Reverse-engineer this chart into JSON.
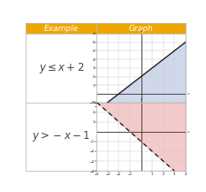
{
  "title_text": "Example",
  "title_text2": "Graph",
  "header_bg": "#F0A500",
  "header_text_color": "#FFFFFF",
  "table_border_color": "#BBBBBB",
  "bg_color": "#FFFFFF",
  "row1_formula": "y \\leq x + 2",
  "row2_formula": "y > -x - 1",
  "graph1": {
    "xlim": [
      -4,
      4
    ],
    "ylim": [
      -1,
      7
    ],
    "shade_color": "#AABBDD",
    "shade_alpha": 0.55,
    "line_solid": true,
    "slope": 1,
    "intercept": 2,
    "shade_below": true
  },
  "graph2": {
    "xlim": [
      -4,
      4
    ],
    "ylim": [
      -4,
      3
    ],
    "shade_color": "#EEA0A0",
    "shade_alpha": 0.55,
    "line_solid": false,
    "slope": -1,
    "intercept": -1,
    "shade_below": false
  },
  "axis_color": "#444444",
  "grid_color": "#CCCCCC",
  "formula_fontsize": 8.5,
  "formula_color": "#444455"
}
